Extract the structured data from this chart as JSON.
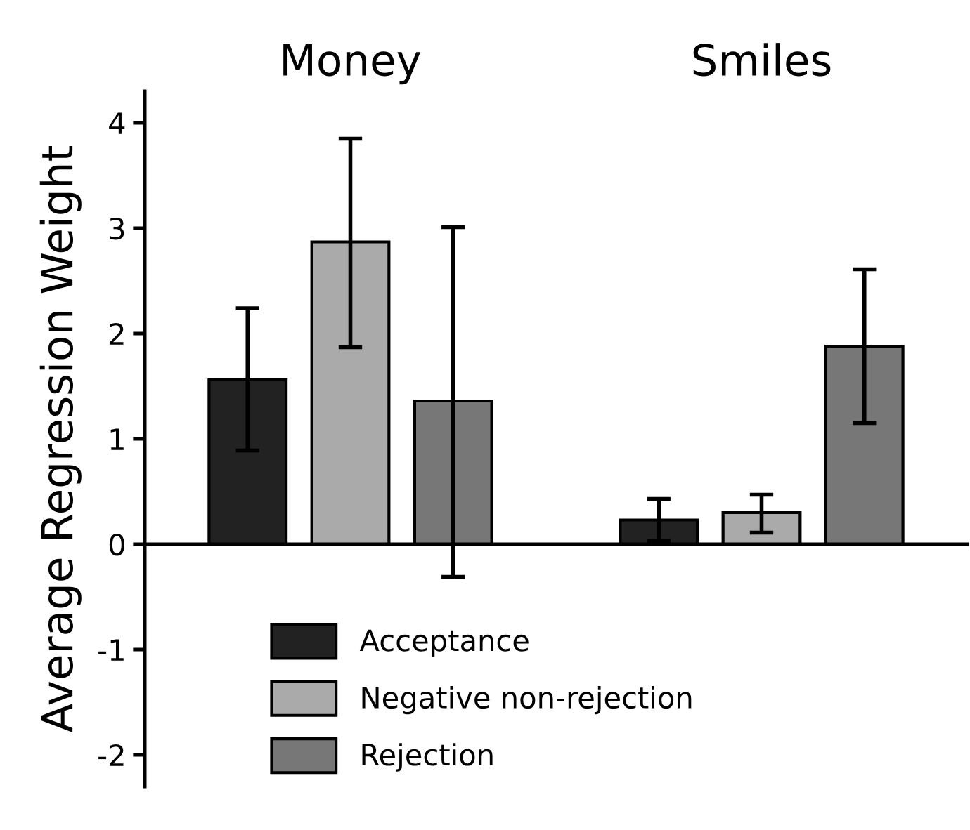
{
  "chart_data": {
    "type": "bar",
    "ylabel": "Average Regression Weight",
    "categories": [
      "Money",
      "Smiles"
    ],
    "ylim": [
      -2.3,
      4.3
    ],
    "yticks": [
      -2,
      -1,
      0,
      1,
      2,
      3,
      4
    ],
    "legend": "bottom left",
    "series": [
      {
        "name": "Acceptance",
        "color": "#222222",
        "values": [
          1.56,
          0.23
        ],
        "errors": [
          [
            0.89,
            2.24
          ],
          [
            0.03,
            0.43
          ]
        ]
      },
      {
        "name": "Negative non-rejection",
        "color": "#aaaaaa",
        "values": [
          2.87,
          0.3
        ],
        "errors": [
          [
            1.87,
            3.85
          ],
          [
            0.11,
            0.47
          ]
        ]
      },
      {
        "name": "Rejection",
        "color": "#777777",
        "values": [
          1.36,
          1.88
        ],
        "errors": [
          [
            -0.31,
            3.01
          ],
          [
            1.15,
            2.61
          ]
        ]
      }
    ]
  }
}
